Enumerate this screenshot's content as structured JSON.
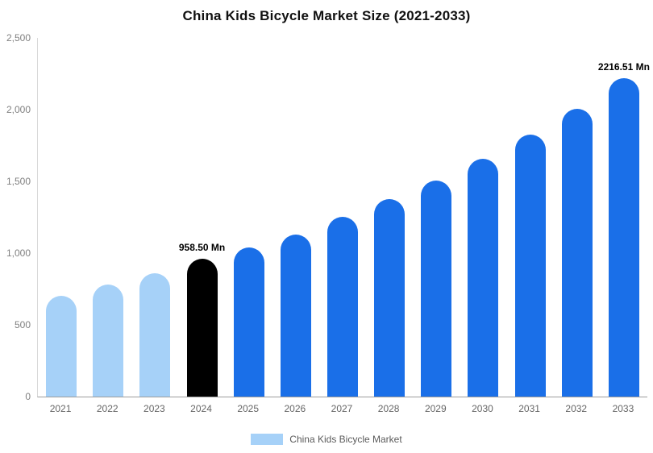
{
  "chart_data": {
    "type": "bar",
    "title": "China Kids Bicycle Market Size (2021-2033)",
    "categories": [
      "2021",
      "2022",
      "2023",
      "2024",
      "2025",
      "2026",
      "2027",
      "2028",
      "2029",
      "2030",
      "2031",
      "2032",
      "2033"
    ],
    "values": [
      700,
      780,
      860,
      958.5,
      1040,
      1130,
      1255,
      1375,
      1505,
      1660,
      1825,
      2005,
      2216.51
    ],
    "unit": "Mn",
    "ylim": [
      0,
      2500
    ],
    "ytick_values": [
      0,
      500,
      1000,
      1500,
      2000,
      2500
    ],
    "yticks": [
      "0",
      "500",
      "1,000",
      "1,500",
      "2,000",
      "2,500"
    ],
    "grid": false,
    "legend": "China Kids Bicycle Market",
    "legend_position": "bottom",
    "data_labels": {
      "2024": "958.50 Mn",
      "2033": "2216.51 Mn"
    },
    "colors": {
      "historical_light_blue": "#A6D1F8",
      "base_year_black": "#000000",
      "forecast_blue": "#1A6FE8"
    },
    "bar_colors": [
      "#A6D1F8",
      "#A6D1F8",
      "#A6D1F8",
      "#000000",
      "#1A6FE8",
      "#1A6FE8",
      "#1A6FE8",
      "#1A6FE8",
      "#1A6FE8",
      "#1A6FE8",
      "#1A6FE8",
      "#1A6FE8",
      "#1A6FE8"
    ]
  }
}
